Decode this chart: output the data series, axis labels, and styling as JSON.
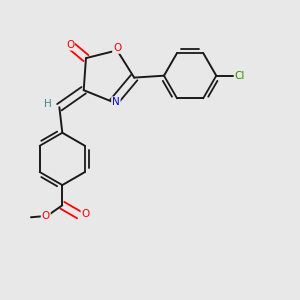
{
  "background_color": "#e8e8e8",
  "bond_color": "#1a1a1a",
  "atom_colors": {
    "O": "#ff0000",
    "N": "#0000ff",
    "Cl": "#2e8b00",
    "H": "#3a8a8a",
    "C": "#1a1a1a"
  }
}
